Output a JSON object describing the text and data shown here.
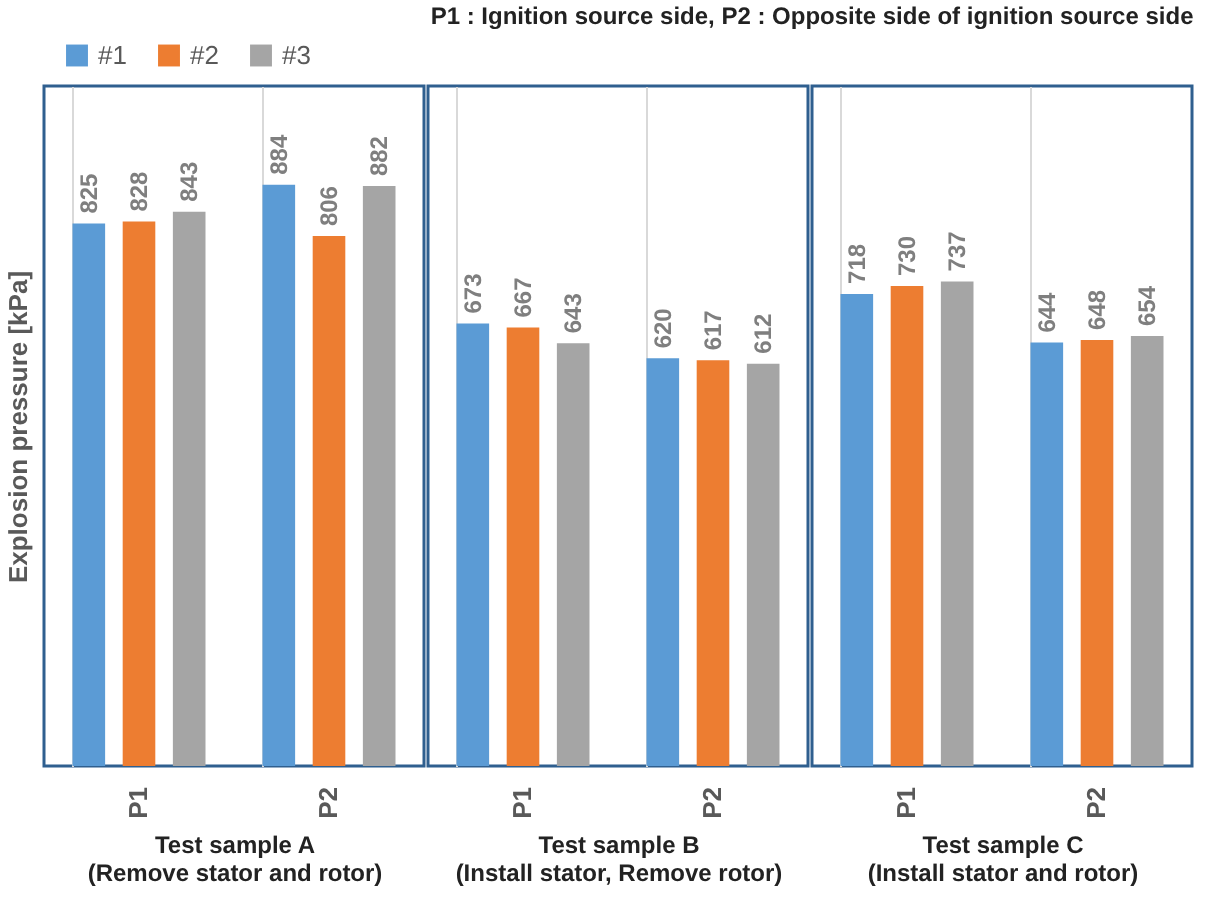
{
  "chart_data": {
    "type": "bar",
    "ylabel": "Explosion pressure [kPa]",
    "categories": [
      "P1",
      "P2",
      "P1",
      "P2",
      "P1",
      "P2"
    ],
    "series": [
      {
        "name": "#1",
        "color": "#5b9bd5",
        "values": [
          825,
          884,
          673,
          620,
          718,
          644
        ]
      },
      {
        "name": "#2",
        "color": "#ed7d31",
        "values": [
          828,
          806,
          667,
          617,
          730,
          648
        ]
      },
      {
        "name": "#3",
        "color": "#a5a5a5",
        "values": [
          843,
          882,
          643,
          612,
          737,
          654
        ]
      }
    ],
    "annotations": [
      "Test sample A\n(Remove stator and rotor)",
      "Test sample B\n(Install stator, Remove rotor)",
      "Test sample C\n(Install stator and rotor)",
      "P1 : Ignition source side,  P2 : Opposite side of ignition source side"
    ],
    "data_labels": true,
    "grid": "x",
    "legend": "top left",
    "tick_labels": "x"
  }
}
